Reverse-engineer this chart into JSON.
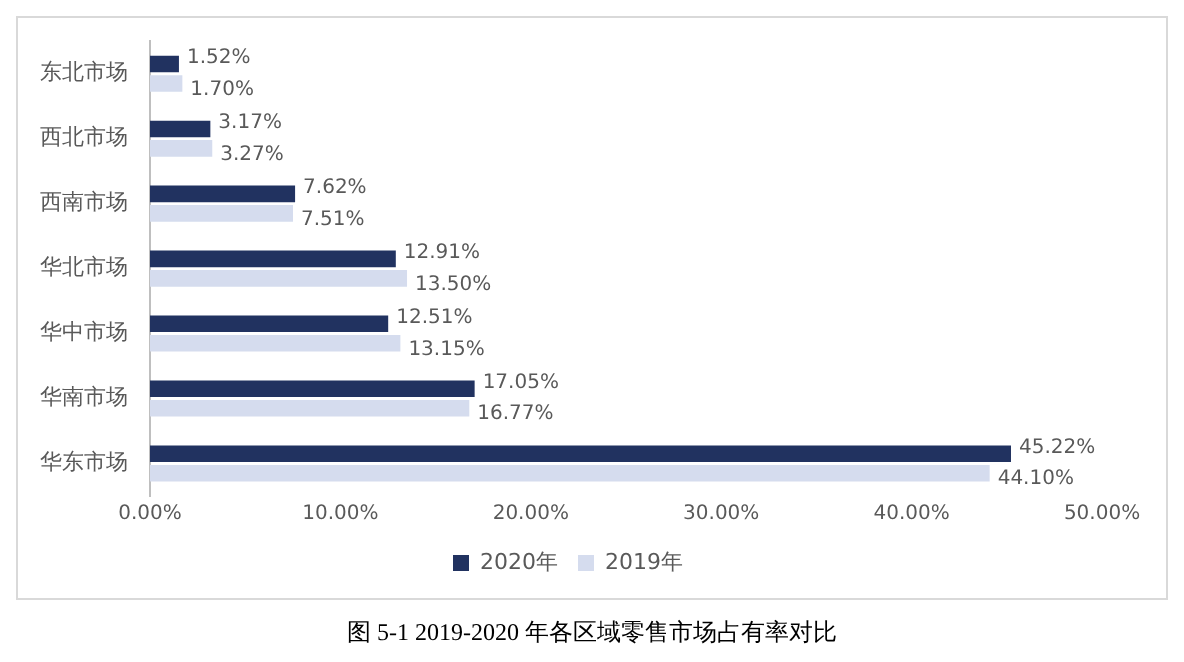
{
  "chart_data": {
    "type": "bar",
    "orientation": "horizontal",
    "title": "图 5-1 2019-2020 年各区域零售市场占有率对比",
    "categories": [
      "东北市场",
      "西北市场",
      "西南市场",
      "华北市场",
      "华中市场",
      "华南市场",
      "华东市场"
    ],
    "series": [
      {
        "name": "2020年",
        "color": "#213260",
        "values": [
          1.52,
          3.17,
          7.62,
          12.91,
          12.51,
          17.05,
          45.22
        ],
        "value_labels": [
          "1.52%",
          "3.17%",
          "7.62%",
          "12.91%",
          "12.51%",
          "17.05%",
          "45.22%"
        ]
      },
      {
        "name": "2019年",
        "color": "#d5dcee",
        "values": [
          1.7,
          3.27,
          7.51,
          13.5,
          13.15,
          16.77,
          44.1
        ],
        "value_labels": [
          "1.70%",
          "3.27%",
          "7.51%",
          "13.50%",
          "13.15%",
          "16.77%",
          "44.10%"
        ]
      }
    ],
    "xlim": [
      0,
      50
    ],
    "xticks": [
      {
        "value": 0,
        "label": "0.00%"
      },
      {
        "value": 10,
        "label": "10.00%"
      },
      {
        "value": 20,
        "label": "20.00%"
      },
      {
        "value": 30,
        "label": "30.00%"
      },
      {
        "value": 40,
        "label": "40.00%"
      },
      {
        "value": 50,
        "label": "50.00%"
      }
    ],
    "grid": false,
    "legend": "bottom"
  }
}
